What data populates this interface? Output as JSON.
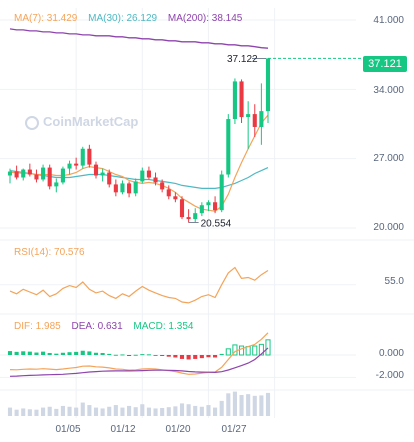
{
  "legend": {
    "ma7": "MA(7): 31.429",
    "ma30": "MA(30): 26.129",
    "ma200": "MA(200): 38.145",
    "rsi": "RSI(14): 70.576",
    "dif": "DIF: 1.985",
    "dea": "DEA: 0.631",
    "macd": "MACD: 1.354"
  },
  "watermark": "CoinMarketCap",
  "price_tag": "37.121",
  "high_marker": "37.122",
  "low_marker": "20.554",
  "colors": {
    "up": "#16c784",
    "down": "#ea3943",
    "ma7": "#f4a45a",
    "ma30": "#4fb9c3",
    "ma200": "#8e44ad",
    "volume": "#cfd6e4",
    "axis_text": "#58667e"
  },
  "chart_data": {
    "type": "candlestick",
    "price_axis": {
      "ticks": [
        "41.000",
        "34.000",
        "27.000",
        "20.000"
      ],
      "range": [
        20,
        41
      ]
    },
    "rsi_axis": {
      "ticks": [
        "55.0"
      ]
    },
    "macd_axis": {
      "ticks": [
        "0.000",
        "-2.000"
      ]
    },
    "x_ticks": [
      {
        "label": "01/05",
        "index": 10
      },
      {
        "label": "01/12",
        "index": 20
      },
      {
        "label": "01/20",
        "index": 30
      },
      {
        "label": "01/27",
        "index": 40
      }
    ],
    "candles": [
      {
        "o": 25.3,
        "h": 26.0,
        "l": 24.5,
        "c": 25.7
      },
      {
        "o": 25.7,
        "h": 26.3,
        "l": 24.9,
        "c": 25.1
      },
      {
        "o": 25.1,
        "h": 26.0,
        "l": 24.8,
        "c": 25.9
      },
      {
        "o": 25.9,
        "h": 26.5,
        "l": 25.2,
        "c": 25.4
      },
      {
        "o": 25.4,
        "h": 25.9,
        "l": 24.6,
        "c": 24.9
      },
      {
        "o": 24.9,
        "h": 26.4,
        "l": 24.7,
        "c": 26.1
      },
      {
        "o": 26.1,
        "h": 26.4,
        "l": 23.9,
        "c": 24.2
      },
      {
        "o": 24.2,
        "h": 25.0,
        "l": 23.6,
        "c": 24.6
      },
      {
        "o": 24.6,
        "h": 26.2,
        "l": 24.4,
        "c": 26.0
      },
      {
        "o": 26.0,
        "h": 26.8,
        "l": 25.4,
        "c": 26.5
      },
      {
        "o": 26.5,
        "h": 27.1,
        "l": 25.9,
        "c": 26.3
      },
      {
        "o": 26.3,
        "h": 28.2,
        "l": 26.0,
        "c": 28.0
      },
      {
        "o": 28.0,
        "h": 28.4,
        "l": 26.1,
        "c": 26.4
      },
      {
        "o": 26.4,
        "h": 26.7,
        "l": 25.0,
        "c": 25.3
      },
      {
        "o": 25.3,
        "h": 26.0,
        "l": 24.7,
        "c": 25.6
      },
      {
        "o": 25.6,
        "h": 25.9,
        "l": 24.1,
        "c": 24.4
      },
      {
        "o": 24.4,
        "h": 24.9,
        "l": 23.2,
        "c": 23.6
      },
      {
        "o": 23.6,
        "h": 24.8,
        "l": 23.4,
        "c": 24.5
      },
      {
        "o": 24.5,
        "h": 24.7,
        "l": 23.1,
        "c": 23.5
      },
      {
        "o": 23.5,
        "h": 25.0,
        "l": 23.2,
        "c": 24.7
      },
      {
        "o": 24.7,
        "h": 26.1,
        "l": 24.5,
        "c": 25.8
      },
      {
        "o": 25.8,
        "h": 26.2,
        "l": 24.9,
        "c": 25.1
      },
      {
        "o": 25.1,
        "h": 25.6,
        "l": 24.3,
        "c": 24.6
      },
      {
        "o": 24.6,
        "h": 24.9,
        "l": 23.6,
        "c": 23.9
      },
      {
        "o": 23.9,
        "h": 24.3,
        "l": 22.9,
        "c": 23.2
      },
      {
        "o": 23.2,
        "h": 23.6,
        "l": 22.6,
        "c": 22.9
      },
      {
        "o": 22.9,
        "h": 23.2,
        "l": 20.9,
        "c": 21.1
      },
      {
        "o": 21.1,
        "h": 21.9,
        "l": 20.55,
        "c": 20.9
      },
      {
        "o": 20.9,
        "h": 22.0,
        "l": 20.6,
        "c": 21.5
      },
      {
        "o": 21.5,
        "h": 22.6,
        "l": 21.2,
        "c": 22.3
      },
      {
        "o": 22.3,
        "h": 22.8,
        "l": 21.7,
        "c": 22.6
      },
      {
        "o": 22.6,
        "h": 23.2,
        "l": 21.5,
        "c": 21.8
      },
      {
        "o": 21.8,
        "h": 25.8,
        "l": 21.6,
        "c": 25.4
      },
      {
        "o": 25.4,
        "h": 31.5,
        "l": 25.1,
        "c": 31.0
      },
      {
        "o": 31.0,
        "h": 35.1,
        "l": 30.5,
        "c": 34.8
      },
      {
        "o": 34.8,
        "h": 35.0,
        "l": 30.6,
        "c": 31.2
      },
      {
        "o": 31.2,
        "h": 32.8,
        "l": 28.0,
        "c": 31.5
      },
      {
        "o": 31.5,
        "h": 32.5,
        "l": 29.2,
        "c": 30.2
      },
      {
        "o": 30.2,
        "h": 34.6,
        "l": 28.4,
        "c": 31.8
      },
      {
        "o": 31.8,
        "h": 37.122,
        "l": 30.6,
        "c": 37.121
      }
    ],
    "ma7": [
      25.6,
      25.6,
      25.5,
      25.5,
      25.4,
      25.4,
      25.4,
      25.3,
      25.3,
      25.4,
      25.6,
      26.0,
      26.2,
      26.1,
      26.0,
      25.7,
      25.4,
      25.2,
      24.8,
      24.6,
      24.5,
      24.6,
      24.5,
      24.3,
      24.0,
      23.6,
      23.0,
      22.6,
      22.2,
      21.9,
      21.8,
      21.7,
      22.2,
      23.4,
      25.1,
      26.6,
      28.0,
      29.3,
      30.6,
      31.4
    ],
    "ma30": [
      25.8,
      25.7,
      25.6,
      25.5,
      25.4,
      25.3,
      25.2,
      25.1,
      25.1,
      25.1,
      25.2,
      25.3,
      25.4,
      25.4,
      25.4,
      25.3,
      25.2,
      25.1,
      25.0,
      24.9,
      24.9,
      24.9,
      24.8,
      24.7,
      24.6,
      24.5,
      24.3,
      24.2,
      24.1,
      24.0,
      24.0,
      24.0,
      24.1,
      24.3,
      24.5,
      24.8,
      25.1,
      25.5,
      25.8,
      26.1
    ],
    "ma200": [
      40.1,
      40.0,
      40.0,
      39.9,
      39.9,
      39.8,
      39.8,
      39.7,
      39.7,
      39.6,
      39.6,
      39.5,
      39.5,
      39.4,
      39.4,
      39.4,
      39.3,
      39.3,
      39.2,
      39.2,
      39.1,
      39.1,
      39.0,
      39.0,
      38.9,
      38.9,
      38.8,
      38.8,
      38.8,
      38.7,
      38.7,
      38.6,
      38.6,
      38.5,
      38.5,
      38.4,
      38.4,
      38.3,
      38.2,
      38.15
    ],
    "rsi": [
      48,
      45,
      50,
      47,
      44,
      49,
      42,
      45,
      51,
      54,
      52,
      58,
      50,
      46,
      48,
      43,
      40,
      45,
      42,
      48,
      53,
      49,
      46,
      43,
      41,
      40,
      36,
      35,
      38,
      42,
      44,
      41,
      55,
      68,
      74,
      62,
      63,
      60,
      66,
      70.6
    ],
    "macd_hist": [
      0.35,
      0.28,
      0.33,
      0.3,
      0.22,
      0.3,
      0.18,
      0.12,
      0.2,
      0.25,
      0.28,
      0.38,
      0.32,
      0.2,
      0.18,
      0.1,
      0.02,
      0.05,
      -0.05,
      0.02,
      0.08,
      0.06,
      0.0,
      -0.08,
      -0.15,
      -0.22,
      -0.35,
      -0.4,
      -0.35,
      -0.28,
      -0.2,
      -0.22,
      0.1,
      0.55,
      0.9,
      0.8,
      0.75,
      0.8,
      0.95,
      1.354
    ],
    "dif": [
      -1.3,
      -1.32,
      -1.28,
      -1.25,
      -1.27,
      -1.22,
      -1.26,
      -1.3,
      -1.25,
      -1.18,
      -1.12,
      -1.0,
      -0.98,
      -1.05,
      -1.08,
      -1.15,
      -1.25,
      -1.28,
      -1.35,
      -1.32,
      -1.25,
      -1.22,
      -1.25,
      -1.32,
      -1.4,
      -1.48,
      -1.62,
      -1.72,
      -1.7,
      -1.62,
      -1.55,
      -1.52,
      -1.1,
      -0.4,
      0.3,
      0.55,
      0.75,
      0.95,
      1.4,
      1.985
    ],
    "dea": [
      -1.9,
      -1.88,
      -1.85,
      -1.82,
      -1.8,
      -1.78,
      -1.76,
      -1.74,
      -1.72,
      -1.68,
      -1.64,
      -1.58,
      -1.52,
      -1.48,
      -1.45,
      -1.43,
      -1.42,
      -1.42,
      -1.42,
      -1.41,
      -1.39,
      -1.37,
      -1.36,
      -1.36,
      -1.37,
      -1.38,
      -1.42,
      -1.47,
      -1.51,
      -1.53,
      -1.54,
      -1.55,
      -1.49,
      -1.34,
      -1.14,
      -0.95,
      -0.72,
      -0.4,
      0.1,
      0.631
    ],
    "volume": [
      2.0,
      1.5,
      1.8,
      1.6,
      1.5,
      2.0,
      2.2,
      1.7,
      2.4,
      2.2,
      2.0,
      3.2,
      2.6,
      2.0,
      1.8,
      2.2,
      2.6,
      2.0,
      2.4,
      2.1,
      2.8,
      2.0,
      1.8,
      1.9,
      2.1,
      2.3,
      3.0,
      2.8,
      2.4,
      2.2,
      2.6,
      2.0,
      3.6,
      5.4,
      5.8,
      5.0,
      5.2,
      4.8,
      4.9,
      5.5
    ]
  }
}
